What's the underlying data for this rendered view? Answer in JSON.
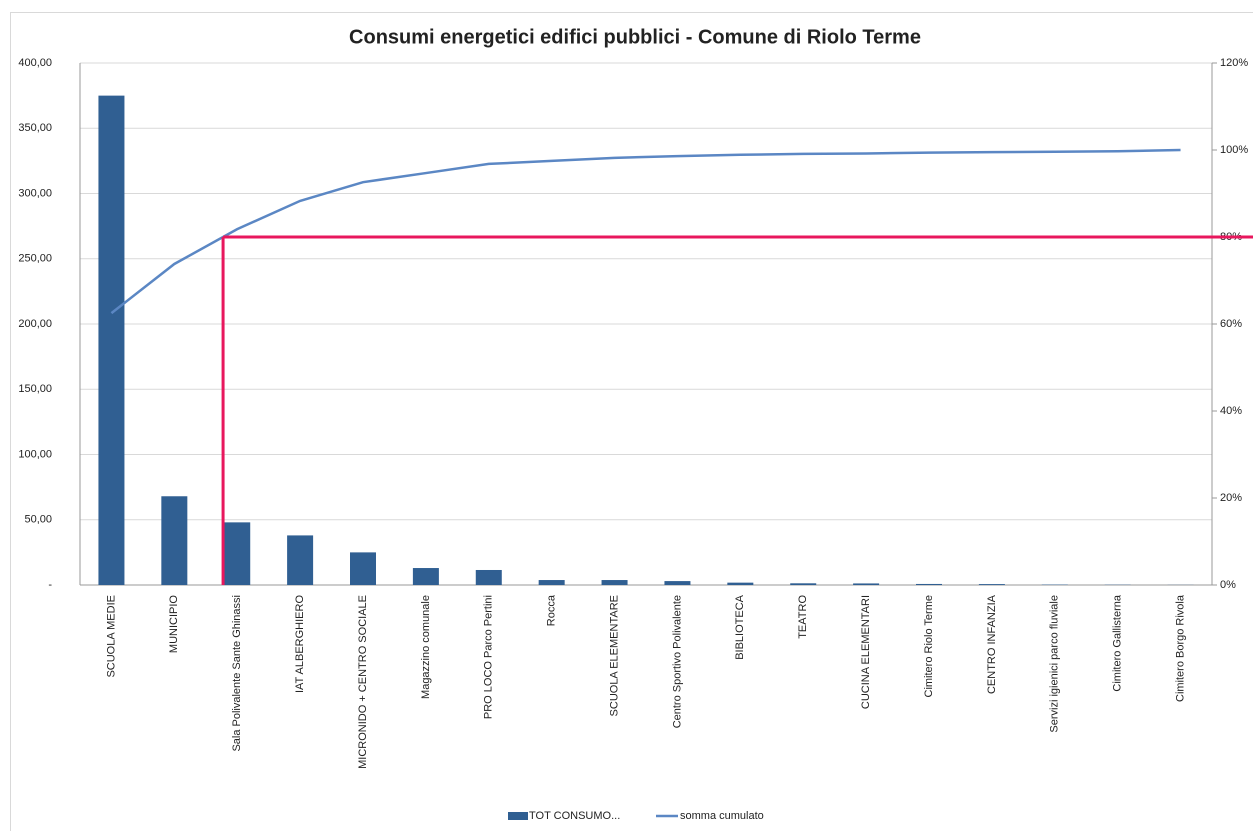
{
  "chart_data": {
    "type": "bar",
    "title": "Consumi energetici edifici pubblici - Comune di Riolo Terme",
    "categories": [
      "SCUOLA MEDIE",
      "MUNICIPIO",
      "Sala Polivalente Sante Ghinassi",
      "IAT ALBERGHIERO",
      "MICRONIDO + CENTRO SOCIALE",
      "Magazzino comunale",
      "PRO LOCO Parco Pertini",
      "Rocca",
      "SCUOLA ELEMENTARE",
      "Centro Sportivo Polivalente",
      "BIBLIOTECA",
      "TEATRO",
      "CUCINA ELEMENTARI",
      "Cimitero Riolo Terme",
      "CENTRO INFANZIA",
      "Servizi igienici parco fluviale",
      "Cimitero Gallisterna",
      "Cimitero Borgo Rivola"
    ],
    "series": [
      {
        "name": "TOT CONSUMO...",
        "color": "#305f92",
        "type": "bar",
        "values": [
          375,
          68,
          48,
          38,
          25,
          13,
          11.5,
          3.8,
          3.8,
          3,
          1.8,
          1.3,
          1.2,
          0.8,
          0.7,
          0.3,
          0.2,
          0.1
        ]
      },
      {
        "name": "somma cumulato",
        "color": "#5b87c4",
        "type": "line",
        "axis": "y2",
        "values": [
          62.5,
          73.8,
          81.8,
          88.3,
          92.6,
          94.7,
          96.8,
          97.5,
          98.2,
          98.6,
          98.9,
          99.1,
          99.2,
          99.4,
          99.5,
          99.6,
          99.7,
          100
        ]
      }
    ],
    "ylim": [
      0,
      400
    ],
    "yticks": [
      {
        "value": 0,
        "label": "-"
      },
      {
        "value": 50,
        "label": "50,00"
      },
      {
        "value": 100,
        "label": "100,00"
      },
      {
        "value": 150,
        "label": "150,00"
      },
      {
        "value": 200,
        "label": "200,00"
      },
      {
        "value": 250,
        "label": "250,00"
      },
      {
        "value": 300,
        "label": "300,00"
      },
      {
        "value": 350,
        "label": "350,00"
      },
      {
        "value": 400,
        "label": "400,00"
      }
    ],
    "y2lim": [
      0,
      120
    ],
    "y2ticks": [
      {
        "value": 0,
        "label": "0%"
      },
      {
        "value": 20,
        "label": "20%"
      },
      {
        "value": 40,
        "label": "40%"
      },
      {
        "value": 60,
        "label": "60%"
      },
      {
        "value": 80,
        "label": "80%"
      },
      {
        "value": 100,
        "label": "100%"
      },
      {
        "value": 120,
        "label": "120%"
      }
    ],
    "threshold": 80,
    "threshold_color": "#e8175d",
    "grid": true,
    "legend": "bottom"
  }
}
